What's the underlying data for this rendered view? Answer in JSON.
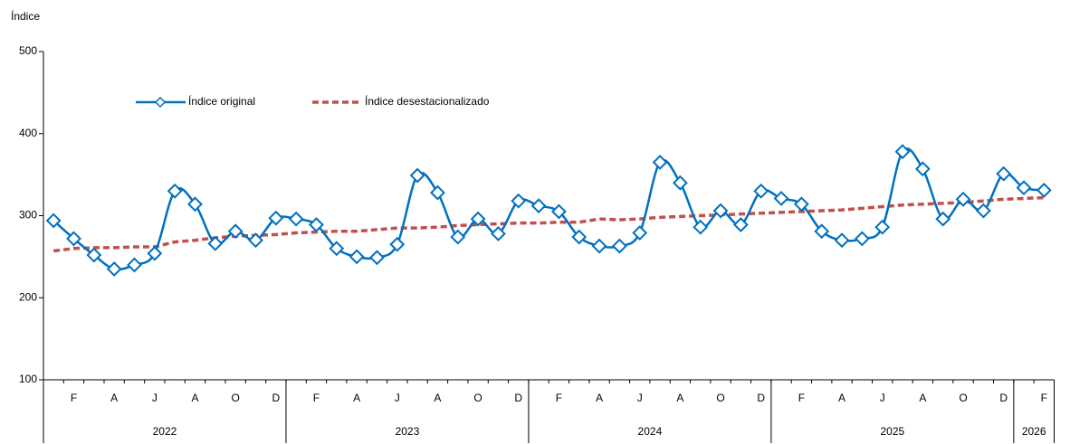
{
  "chart_data": {
    "type": "line",
    "y_axis_label": "Índice",
    "categories": [
      null,
      "F",
      null,
      "A",
      null,
      "J",
      null,
      "A",
      null,
      "O",
      null,
      "D",
      null,
      "F",
      null,
      "A",
      null,
      "J",
      null,
      "A",
      null,
      "O",
      null,
      "D",
      null,
      "F",
      null,
      "A",
      null,
      "J",
      null,
      "A",
      null,
      "O",
      null,
      "D",
      null,
      "F",
      null,
      "A",
      null,
      "J",
      null,
      "A",
      null,
      "O",
      null,
      "D",
      null,
      "F"
    ],
    "year_groups": [
      "2022",
      "2023",
      "2024",
      "2025",
      "2026"
    ],
    "series": [
      {
        "name": "Índice original",
        "color": "#0070c0",
        "marker": "diamond",
        "dashed": false,
        "values": [
          294,
          272,
          252,
          235,
          240,
          254,
          330,
          314,
          266,
          281,
          270,
          297,
          296,
          289,
          260,
          250,
          249,
          265,
          349,
          328,
          274,
          296,
          278,
          318,
          312,
          305,
          274,
          263,
          263,
          279,
          365,
          340,
          286,
          306,
          289,
          330,
          321,
          314,
          281,
          270,
          272,
          286,
          378,
          357,
          296,
          320,
          306,
          351,
          334,
          331
        ]
      },
      {
        "name": "Índice desestacionalizado",
        "color": "#c0504d",
        "marker": null,
        "dashed": true,
        "values": [
          257,
          260,
          261,
          261,
          262,
          262,
          268,
          270,
          273,
          275,
          276,
          277,
          279,
          280,
          281,
          281,
          283,
          285,
          285,
          286,
          288,
          289,
          290,
          291,
          291,
          292,
          292,
          296,
          295,
          296,
          298,
          299,
          300,
          301,
          302,
          303,
          304,
          305,
          306,
          307,
          309,
          311,
          313,
          314,
          315,
          316,
          318,
          320,
          321,
          322
        ]
      }
    ],
    "ylim": [
      100,
      500
    ],
    "yticks": [
      100,
      200,
      300,
      400,
      500
    ],
    "grid": false
  }
}
